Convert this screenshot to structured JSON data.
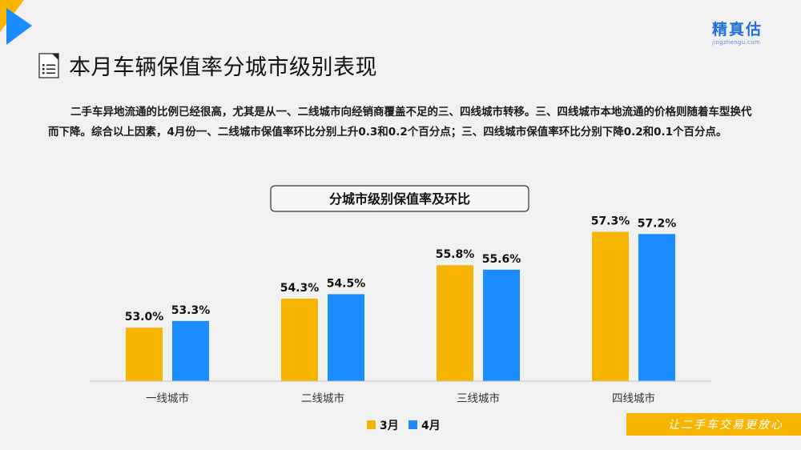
{
  "brand": {
    "name": "精真估",
    "sub": "jingzhengu.com"
  },
  "page_title": "本月车辆保值率分城市级别表现",
  "intro_text": "二手车异地流通的比例已经很高，尤其是从一、二线城市向经销商覆盖不足的三、四线城市转移。三、四线城市本地流通的价格则随着车型换代而下降。综合以上因素，4月份一、二线城市保值率环比分别上升0.3和0.2个百分点；三、四线城市保值率环比分别下降0.2和0.1个百分点。",
  "slogan": "让二手车交易更放心",
  "colors": {
    "accent_blue": "#1a8cff",
    "accent_yellow": "#f7b500",
    "brand_blue": "#1f6fd8"
  },
  "chart_data": {
    "type": "bar",
    "title": "分城市级别保值率及环比",
    "categories": [
      "一线城市",
      "二线城市",
      "三线城市",
      "四线城市"
    ],
    "series": [
      {
        "name": "3月",
        "values": [
          53.0,
          54.3,
          55.8,
          57.3
        ],
        "labels": [
          "53.0%",
          "54.3%",
          "55.8%",
          "57.3%"
        ],
        "color": "#f7b500"
      },
      {
        "name": "4月",
        "values": [
          53.3,
          54.5,
          55.6,
          57.2
        ],
        "labels": [
          "53.3%",
          "54.5%",
          "55.6%",
          "57.2%"
        ],
        "color": "#1a8cff"
      }
    ],
    "xlabel": "",
    "ylabel": "",
    "ylim": [
      50.6,
      58.0
    ],
    "grid": false,
    "legend": "bottom-center"
  }
}
